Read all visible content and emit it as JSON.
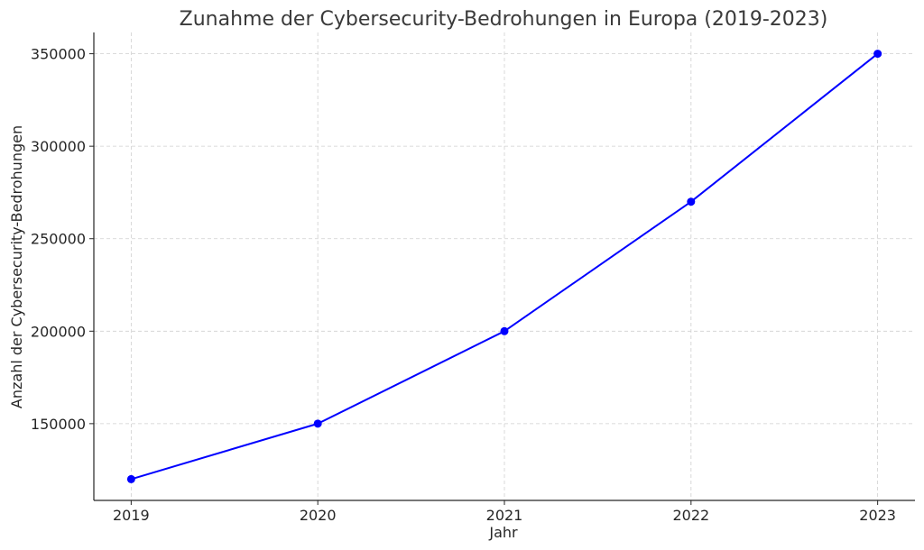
{
  "chart_data": {
    "type": "line",
    "title": "Zunahme der Cybersecurity-Bedrohungen in Europa (2019-2023)",
    "xlabel": "Jahr",
    "ylabel": "Anzahl der Cybersecurity-Bedrohungen",
    "x": [
      2019,
      2020,
      2021,
      2022,
      2023
    ],
    "x_tick_labels": [
      "2019",
      "2020",
      "2021",
      "2022",
      "2023"
    ],
    "y_ticks": [
      150000,
      200000,
      250000,
      300000,
      350000
    ],
    "y_tick_labels": [
      "150000",
      "200000",
      "250000",
      "300000",
      "350000"
    ],
    "xlim": [
      2018.8,
      2023.2
    ],
    "ylim": [
      108500,
      361500
    ],
    "grid": true,
    "series": [
      {
        "color": "#0000ff",
        "marker": "circle",
        "values": [
          120000,
          150000,
          200000,
          270000,
          350000
        ]
      }
    ]
  }
}
